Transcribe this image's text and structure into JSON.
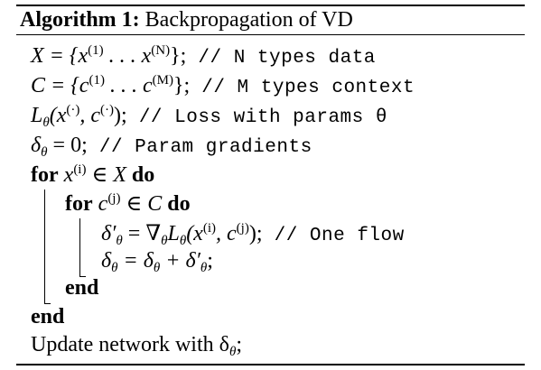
{
  "title": {
    "label": "Algorithm 1:",
    "name": "Backpropagation of VD"
  },
  "lines": {
    "l1_math": "X = {x",
    "l1_sup1": "(1)",
    "l1_math2": " . . . x",
    "l1_sup2": "(N)",
    "l1_math3": "};",
    "l1_comment": " // N types data",
    "l2_math": "C = {c",
    "l2_sup1": "(1)",
    "l2_math2": " . . . c",
    "l2_sup2": "(M)",
    "l2_math3": "};",
    "l2_comment": " // M types context",
    "l3_math": "L",
    "l3_sub": "θ",
    "l3_math2": "(x",
    "l3_sup1": "(·)",
    "l3_math3": ", c",
    "l3_sup2": "(·)",
    "l3_math4": ");",
    "l3_comment": " // Loss with params θ",
    "l4_math": "δ",
    "l4_sub": "θ",
    "l4_math2": " = 0;",
    "l4_comment": " // Param gradients",
    "l5_kw1": "for",
    "l5_math": " x",
    "l5_sup": "(i)",
    "l5_math2": " ∈ X ",
    "l5_kw2": "do",
    "l6_kw1": "for",
    "l6_math": " c",
    "l6_sup": "(j)",
    "l6_math2": " ∈ C ",
    "l6_kw2": "do",
    "l7_math": "δ′",
    "l7_sub": "θ",
    "l7_math2": " = ∇",
    "l7_sub2": "θ",
    "l7_math3": "L",
    "l7_sub3": "θ",
    "l7_math4": "(x",
    "l7_sup1": "(i)",
    "l7_math5": ", c",
    "l7_sup2": "(j)",
    "l7_math6": ");",
    "l7_comment": " // One flow",
    "l8_math": "δ",
    "l8_sub": "θ",
    "l8_math2": " = δ",
    "l8_sub2": "θ",
    "l8_math3": " + δ′",
    "l8_sub3": "θ",
    "l8_math4": ";",
    "l9_kw": "end",
    "l10_kw": "end",
    "l11_text": "Update network with δ",
    "l11_sub": "θ",
    "l11_text2": ";"
  }
}
